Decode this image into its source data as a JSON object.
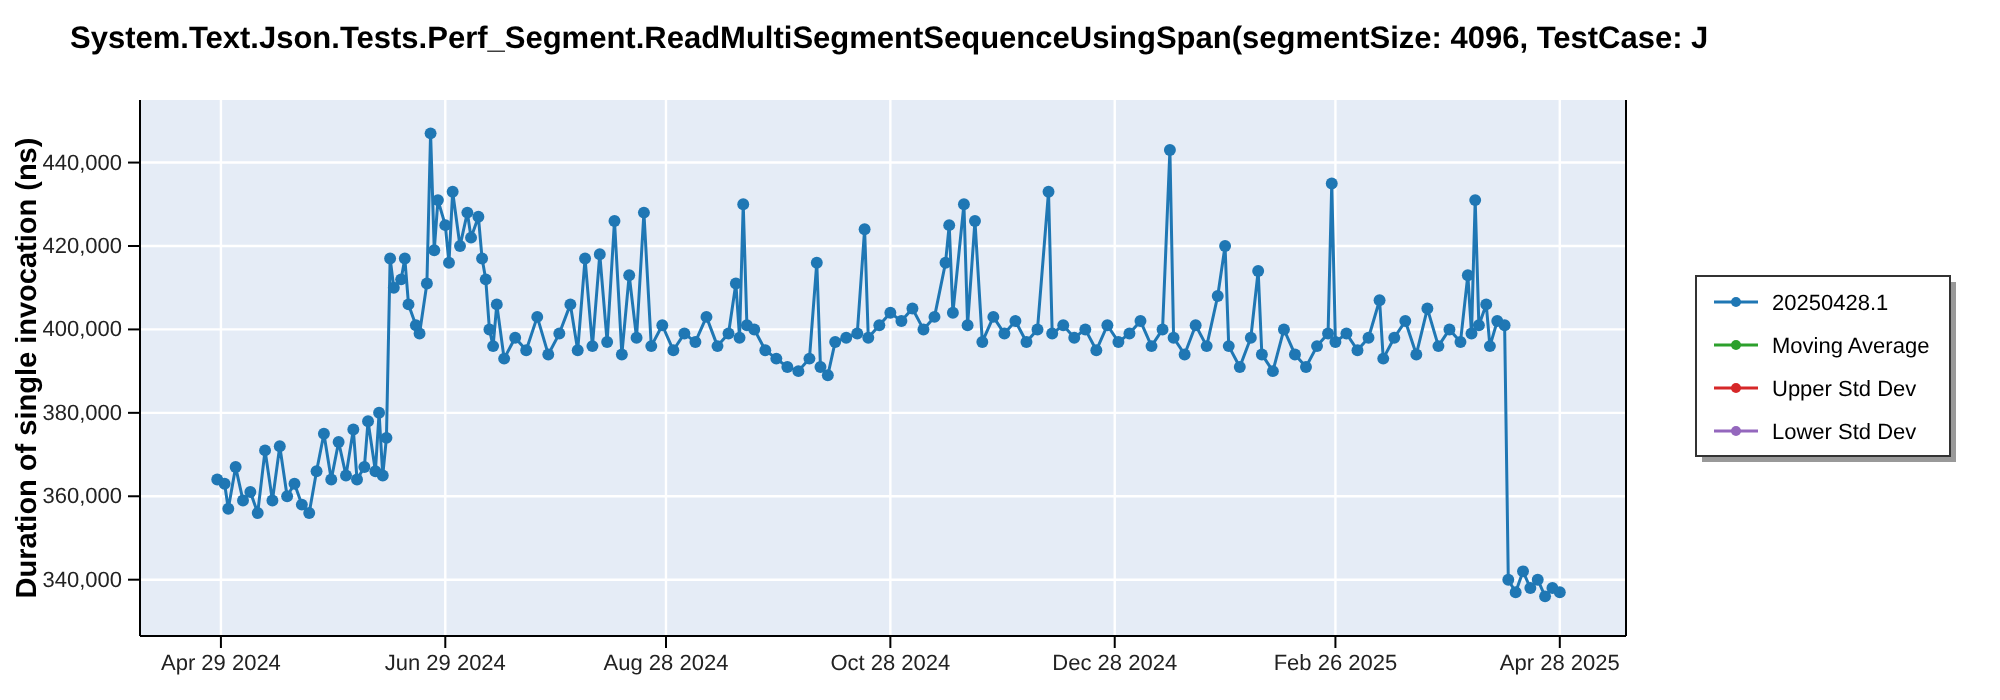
{
  "chart_data": {
    "type": "line",
    "title": "System.Text.Json.Tests.Perf_Segment.ReadMultiSegmentSequenceUsingSpan(segmentSize: 4096, TestCase: J",
    "ylabel": "Duration of single invocation (ns)",
    "xlim": [
      "2024-04-07",
      "2025-05-16"
    ],
    "ylim": [
      326500,
      455000
    ],
    "xticks": [
      {
        "value": "2024-04-29",
        "label": "Apr 29 2024"
      },
      {
        "value": "2024-06-29",
        "label": "Jun 29 2024"
      },
      {
        "value": "2024-08-28",
        "label": "Aug 28 2024"
      },
      {
        "value": "2024-10-28",
        "label": "Oct 28 2024"
      },
      {
        "value": "2024-12-28",
        "label": "Dec 28 2024"
      },
      {
        "value": "2025-02-26",
        "label": "Feb 26 2025"
      },
      {
        "value": "2025-04-28",
        "label": "Apr 28 2025"
      }
    ],
    "yticks": [
      {
        "value": 340000,
        "label": "340,000"
      },
      {
        "value": 360000,
        "label": "360,000"
      },
      {
        "value": 380000,
        "label": "380,000"
      },
      {
        "value": 400000,
        "label": "400,000"
      },
      {
        "value": 420000,
        "label": "420,000"
      },
      {
        "value": 440000,
        "label": "440,000"
      }
    ],
    "grid": true,
    "legend": "right",
    "marker": "circle",
    "line_style": "solid",
    "x": [
      "2024-04-28",
      "2024-04-30",
      "2024-05-01",
      "2024-05-03",
      "2024-05-05",
      "2024-05-07",
      "2024-05-09",
      "2024-05-11",
      "2024-05-13",
      "2024-05-15",
      "2024-05-17",
      "2024-05-19",
      "2024-05-21",
      "2024-05-23",
      "2024-05-25",
      "2024-05-27",
      "2024-05-29",
      "2024-05-31",
      "2024-06-02",
      "2024-06-04",
      "2024-06-05",
      "2024-06-07",
      "2024-06-08",
      "2024-06-10",
      "2024-06-11",
      "2024-06-12",
      "2024-06-13",
      "2024-06-14",
      "2024-06-15",
      "2024-06-17",
      "2024-06-18",
      "2024-06-19",
      "2024-06-21",
      "2024-06-22",
      "2024-06-24",
      "2024-06-25",
      "2024-06-26",
      "2024-06-27",
      "2024-06-29",
      "2024-06-30",
      "2024-07-01",
      "2024-07-03",
      "2024-07-05",
      "2024-07-06",
      "2024-07-08",
      "2024-07-09",
      "2024-07-10",
      "2024-07-11",
      "2024-07-12",
      "2024-07-13",
      "2024-07-15",
      "2024-07-18",
      "2024-07-21",
      "2024-07-24",
      "2024-07-27",
      "2024-07-30",
      "2024-08-02",
      "2024-08-04",
      "2024-08-06",
      "2024-08-08",
      "2024-08-10",
      "2024-08-12",
      "2024-08-14",
      "2024-08-16",
      "2024-08-18",
      "2024-08-20",
      "2024-08-22",
      "2024-08-24",
      "2024-08-27",
      "2024-08-30",
      "2024-09-02",
      "2024-09-05",
      "2024-09-08",
      "2024-09-11",
      "2024-09-14",
      "2024-09-16",
      "2024-09-17",
      "2024-09-18",
      "2024-09-19",
      "2024-09-21",
      "2024-09-24",
      "2024-09-27",
      "2024-09-30",
      "2024-10-03",
      "2024-10-06",
      "2024-10-08",
      "2024-10-09",
      "2024-10-11",
      "2024-10-13",
      "2024-10-16",
      "2024-10-19",
      "2024-10-21",
      "2024-10-22",
      "2024-10-25",
      "2024-10-28",
      "2024-10-31",
      "2024-11-03",
      "2024-11-06",
      "2024-11-09",
      "2024-11-12",
      "2024-11-13",
      "2024-11-14",
      "2024-11-17",
      "2024-11-18",
      "2024-11-20",
      "2024-11-22",
      "2024-11-25",
      "2024-11-28",
      "2024-12-01",
      "2024-12-04",
      "2024-12-07",
      "2024-12-10",
      "2024-12-11",
      "2024-12-14",
      "2024-12-17",
      "2024-12-20",
      "2024-12-23",
      "2024-12-26",
      "2024-12-29",
      "2025-01-01",
      "2025-01-04",
      "2025-01-07",
      "2025-01-10",
      "2025-01-12",
      "2025-01-13",
      "2025-01-16",
      "2025-01-19",
      "2025-01-22",
      "2025-01-25",
      "2025-01-27",
      "2025-01-28",
      "2025-01-31",
      "2025-02-03",
      "2025-02-05",
      "2025-02-06",
      "2025-02-09",
      "2025-02-12",
      "2025-02-15",
      "2025-02-18",
      "2025-02-21",
      "2025-02-24",
      "2025-02-25",
      "2025-02-26",
      "2025-03-01",
      "2025-03-04",
      "2025-03-07",
      "2025-03-10",
      "2025-03-11",
      "2025-03-14",
      "2025-03-17",
      "2025-03-20",
      "2025-03-23",
      "2025-03-26",
      "2025-03-29",
      "2025-04-01",
      "2025-04-03",
      "2025-04-04",
      "2025-04-05",
      "2025-04-06",
      "2025-04-08",
      "2025-04-09",
      "2025-04-11",
      "2025-04-13",
      "2025-04-14",
      "2025-04-16",
      "2025-04-18",
      "2025-04-20",
      "2025-04-22",
      "2025-04-24",
      "2025-04-26",
      "2025-04-28"
    ],
    "series": [
      {
        "name": "20250428.1",
        "color": "#1f77b4",
        "values": [
          364000,
          363000,
          357000,
          367000,
          359000,
          361000,
          356000,
          371000,
          359000,
          372000,
          360000,
          363000,
          358000,
          356000,
          366000,
          375000,
          364000,
          373000,
          365000,
          376000,
          364000,
          367000,
          378000,
          366000,
          380000,
          365000,
          374000,
          417000,
          410000,
          412000,
          417000,
          406000,
          401000,
          399000,
          411000,
          447000,
          419000,
          431000,
          425000,
          416000,
          433000,
          420000,
          428000,
          422000,
          427000,
          417000,
          412000,
          400000,
          396000,
          406000,
          393000,
          398000,
          395000,
          403000,
          394000,
          399000,
          406000,
          395000,
          417000,
          396000,
          418000,
          397000,
          426000,
          394000,
          413000,
          398000,
          428000,
          396000,
          401000,
          395000,
          399000,
          397000,
          403000,
          396000,
          399000,
          411000,
          398000,
          430000,
          401000,
          400000,
          395000,
          393000,
          391000,
          390000,
          393000,
          416000,
          391000,
          389000,
          397000,
          398000,
          399000,
          424000,
          398000,
          401000,
          404000,
          402000,
          405000,
          400000,
          403000,
          416000,
          425000,
          404000,
          430000,
          401000,
          426000,
          397000,
          403000,
          399000,
          402000,
          397000,
          400000,
          433000,
          399000,
          401000,
          398000,
          400000,
          395000,
          401000,
          397000,
          399000,
          402000,
          396000,
          400000,
          443000,
          398000,
          394000,
          401000,
          396000,
          408000,
          420000,
          396000,
          391000,
          398000,
          414000,
          394000,
          390000,
          400000,
          394000,
          391000,
          396000,
          399000,
          435000,
          397000,
          399000,
          395000,
          398000,
          407000,
          393000,
          398000,
          402000,
          394000,
          405000,
          396000,
          400000,
          397000,
          413000,
          399000,
          431000,
          401000,
          406000,
          396000,
          402000,
          401000,
          340000,
          337000,
          342000,
          338000,
          340000,
          336000,
          338000,
          337000
        ]
      },
      {
        "name": "Moving Average",
        "color": "#2ca02c",
        "values": [
          null,
          null,
          null,
          null,
          null,
          null,
          null,
          null,
          null,
          null,
          null,
          null,
          null,
          null,
          null,
          null,
          null,
          null,
          null,
          null,
          null,
          null,
          null,
          null,
          null,
          null,
          null,
          null,
          null,
          null,
          null,
          null,
          null,
          null,
          null,
          null,
          null,
          null,
          null,
          null,
          null,
          null,
          null,
          null,
          null,
          null,
          null,
          null,
          null,
          null,
          null,
          null,
          null,
          null,
          null,
          null,
          null,
          null,
          null,
          null,
          null,
          null,
          null,
          null,
          null,
          null,
          null,
          null,
          null,
          null,
          null,
          null,
          null,
          null,
          null,
          null,
          null,
          null,
          null,
          null,
          null,
          null,
          null,
          null,
          null,
          null,
          null,
          null,
          null,
          null,
          null,
          null,
          null,
          null,
          null,
          null,
          null,
          null,
          null,
          null,
          null,
          null,
          null,
          null,
          null,
          null,
          null,
          null,
          null,
          null,
          null,
          null,
          null,
          null,
          null,
          null,
          null,
          null,
          null,
          null,
          null,
          null,
          null,
          null,
          null,
          null,
          null,
          null,
          null,
          null,
          null,
          null,
          null,
          null,
          null,
          null,
          null,
          null,
          null,
          null,
          null,
          null,
          null,
          null,
          null,
          null,
          null,
          null,
          null,
          null,
          null,
          null,
          null,
          null,
          null,
          null,
          null,
          null,
          null,
          null,
          null,
          null,
          null,
          null,
          null,
          null,
          null,
          null,
          null,
          null,
          null
        ]
      },
      {
        "name": "Upper Std Dev",
        "color": "#d62728",
        "values": [
          null,
          null,
          null,
          null,
          null,
          null,
          null,
          null,
          null,
          null,
          null,
          null,
          null,
          null,
          null,
          null,
          null,
          null,
          null,
          null,
          null,
          null,
          null,
          null,
          null,
          null,
          null,
          null,
          null,
          null,
          null,
          null,
          null,
          null,
          null,
          null,
          null,
          null,
          null,
          null,
          null,
          null,
          null,
          null,
          null,
          null,
          null,
          null,
          null,
          null,
          null,
          null,
          null,
          null,
          null,
          null,
          null,
          null,
          null,
          null,
          null,
          null,
          null,
          null,
          null,
          null,
          null,
          null,
          null,
          null,
          null,
          null,
          null,
          null,
          null,
          null,
          null,
          null,
          null,
          null,
          null,
          null,
          null,
          null,
          null,
          null,
          null,
          null,
          null,
          null,
          null,
          null,
          null,
          null,
          null,
          null,
          null,
          null,
          null,
          null,
          null,
          null,
          null,
          null,
          null,
          null,
          null,
          null,
          null,
          null,
          null,
          null,
          null,
          null,
          null,
          null,
          null,
          null,
          null,
          null,
          null,
          null,
          null,
          null,
          null,
          null,
          null,
          null,
          null,
          null,
          null,
          null,
          null,
          null,
          null,
          null,
          null,
          null,
          null,
          null,
          null,
          null,
          null,
          null,
          null,
          null,
          null,
          null,
          null,
          null,
          null,
          null,
          null,
          null,
          null,
          null,
          null,
          null,
          null,
          null,
          null,
          null,
          null,
          null,
          null,
          null,
          null,
          null,
          null,
          null,
          null
        ]
      },
      {
        "name": "Lower Std Dev",
        "color": "#9467bd",
        "values": [
          null,
          null,
          null,
          null,
          null,
          null,
          null,
          null,
          null,
          null,
          null,
          null,
          null,
          null,
          null,
          null,
          null,
          null,
          null,
          null,
          null,
          null,
          null,
          null,
          null,
          null,
          null,
          null,
          null,
          null,
          null,
          null,
          null,
          null,
          null,
          null,
          null,
          null,
          null,
          null,
          null,
          null,
          null,
          null,
          null,
          null,
          null,
          null,
          null,
          null,
          null,
          null,
          null,
          null,
          null,
          null,
          null,
          null,
          null,
          null,
          null,
          null,
          null,
          null,
          null,
          null,
          null,
          null,
          null,
          null,
          null,
          null,
          null,
          null,
          null,
          null,
          null,
          null,
          null,
          null,
          null,
          null,
          null,
          null,
          null,
          null,
          null,
          null,
          null,
          null,
          null,
          null,
          null,
          null,
          null,
          null,
          null,
          null,
          null,
          null,
          null,
          null,
          null,
          null,
          null,
          null,
          null,
          null,
          null,
          null,
          null,
          null,
          null,
          null,
          null,
          null,
          null,
          null,
          null,
          null,
          null,
          null,
          null,
          null,
          null,
          null,
          null,
          null,
          null,
          null,
          null,
          null,
          null,
          null,
          null,
          null,
          null,
          null,
          null,
          null,
          null,
          null,
          null,
          null,
          null,
          null,
          null,
          null,
          null,
          null,
          null,
          null,
          null,
          null,
          null,
          null,
          null,
          null,
          null,
          null,
          null,
          null,
          null,
          null,
          null,
          null,
          null,
          null,
          null,
          null,
          null
        ]
      }
    ]
  }
}
